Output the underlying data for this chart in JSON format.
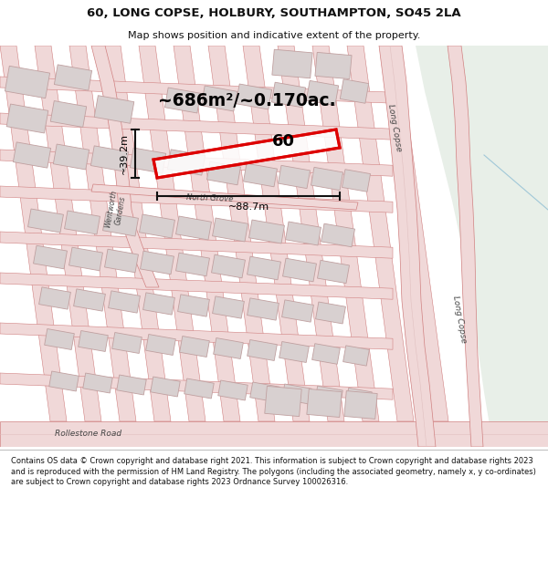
{
  "title_line1": "60, LONG COPSE, HOLBURY, SOUTHAMPTON, SO45 2LA",
  "title_line2": "Map shows position and indicative extent of the property.",
  "footer_text": "Contains OS data © Crown copyright and database right 2021. This information is subject to Crown copyright and database rights 2023 and is reproduced with the permission of HM Land Registry. The polygons (including the associated geometry, namely x, y co-ordinates) are subject to Crown copyright and database rights 2023 Ordnance Survey 100026316.",
  "area_label": "~686m²/~0.170ac.",
  "width_label": "~88.7m",
  "height_label": "~39.2m",
  "plot_number": "60",
  "map_bg": "#f7f3f3",
  "road_fill": "#f0d8d8",
  "road_edge": "#d08080",
  "road_center": "#e0b0b0",
  "building_fill": "#d8d0d0",
  "building_edge": "#c0a0a0",
  "highlight_color": "#dd0000",
  "green_fill": "#e8efe8",
  "green_line": "#9ec9a0",
  "text_dark": "#111111",
  "road_label_color": "#444444",
  "dim_color": "#111111"
}
